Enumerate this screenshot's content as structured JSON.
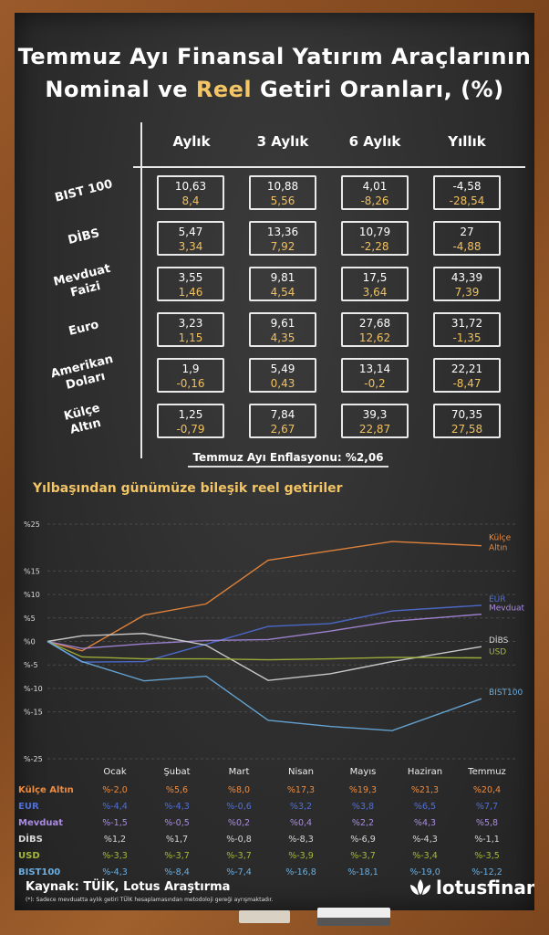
{
  "title_line1": "Temmuz Ayı Finansal Yatırım Araçlarının",
  "title_line2_a": "Nominal ve ",
  "title_line2_hl": "Reel",
  "title_line2_b": " Getiri Oranları, (%)",
  "periods": [
    "Aylık",
    "3 Aylık",
    "6 Aylık",
    "Yıllık"
  ],
  "rows": [
    {
      "label": [
        "BIST 100"
      ],
      "nominal": [
        "10,63",
        "10,88",
        "4,01",
        "-4,58"
      ],
      "real": [
        "8,4",
        "5,56",
        "-8,26",
        "-28,54"
      ]
    },
    {
      "label": [
        "DİBS"
      ],
      "nominal": [
        "5,47",
        "13,36",
        "10,79",
        "27"
      ],
      "real": [
        "3,34",
        "7,92",
        "-2,28",
        "-4,88"
      ]
    },
    {
      "label": [
        "Mevduat",
        "Faizi"
      ],
      "nominal": [
        "3,55",
        "9,81",
        "17,5",
        "43,39"
      ],
      "real": [
        "1,46",
        "4,54",
        "3,64",
        "7,39"
      ]
    },
    {
      "label": [
        "Euro"
      ],
      "nominal": [
        "3,23",
        "9,61",
        "27,68",
        "31,72"
      ],
      "real": [
        "1,15",
        "4,35",
        "12,62",
        "-1,35"
      ]
    },
    {
      "label": [
        "Amerikan",
        "Doları"
      ],
      "nominal": [
        "1,9",
        "5,49",
        "13,14",
        "22,21"
      ],
      "real": [
        "-0,16",
        "0,43",
        "-0,2",
        "-8,47"
      ]
    },
    {
      "label": [
        "Külçe",
        "Altın"
      ],
      "nominal": [
        "1,25",
        "7,84",
        "39,3",
        "70,35"
      ],
      "real": [
        "-0,79",
        "2,67",
        "22,87",
        "27,58"
      ]
    }
  ],
  "inflation_note": "Temmuz Ayı Enflasyonu: %2,06",
  "chart_subtitle": "Yılbaşından günümüze bileşik reel getiriler",
  "chart_data": {
    "type": "line",
    "title": "Yılbaşından günümüze bileşik reel getiriler",
    "categories": [
      "Ocak",
      "Şubat",
      "Mart",
      "Nisan",
      "Mayıs",
      "Haziran",
      "Temmuz"
    ],
    "ylim": [
      -25,
      25
    ],
    "yticks": [
      25,
      15,
      10,
      5,
      0,
      -5,
      -10,
      -15,
      -25
    ],
    "ytick_labels": [
      "%25",
      "%15",
      "%10",
      "%5",
      "%0",
      "%-5",
      "%-10",
      "%-15",
      "%-25"
    ],
    "grid": true,
    "series": [
      {
        "name": "Külçe Altın",
        "end_label": [
          "Külçe",
          "Altın"
        ],
        "color": "#f08a3c",
        "values": [
          -2.0,
          5.6,
          8.0,
          17.3,
          19.3,
          21.3,
          20.4
        ],
        "labels": [
          "%-2,0",
          "%5,6",
          "%8,0",
          "%17,3",
          "%19,3",
          "%21,3",
          "%20,4"
        ]
      },
      {
        "name": "EUR",
        "end_label": [
          "EUR"
        ],
        "color": "#4f6fd8",
        "values": [
          -4.4,
          -4.3,
          -0.6,
          3.2,
          3.8,
          6.5,
          7.7
        ],
        "labels": [
          "%-4,4",
          "%-4,3",
          "%-0,6",
          "%3,2",
          "%3,8",
          "%6,5",
          "%7,7"
        ]
      },
      {
        "name": "Mevduat",
        "end_label": [
          "Mevduat"
        ],
        "color": "#a98be0",
        "values": [
          -1.5,
          -0.5,
          0.2,
          0.4,
          2.2,
          4.3,
          5.8
        ],
        "labels": [
          "%-1,5",
          "%-0,5",
          "%0,2",
          "%0,4",
          "%2,2",
          "%4,3",
          "%5,8"
        ]
      },
      {
        "name": "DİBS",
        "end_label": [
          "DİBS"
        ],
        "color": "#d8d8d8",
        "values": [
          1.2,
          1.7,
          -0.8,
          -8.3,
          -6.9,
          -4.3,
          -1.1
        ],
        "labels": [
          "%1,2",
          "%1,7",
          "%-0,8",
          "%-8,3",
          "%-6,9",
          "%-4,3",
          "%-1,1"
        ]
      },
      {
        "name": "USD",
        "end_label": [
          "USD"
        ],
        "color": "#a8b83a",
        "values": [
          -3.3,
          -3.7,
          -3.7,
          -3.9,
          -3.7,
          -3.4,
          -3.5
        ],
        "labels": [
          "%-3,3",
          "%-3,7",
          "%-3,7",
          "%-3,9",
          "%-3,7",
          "%-3,4",
          "%-3,5"
        ]
      },
      {
        "name": "BIST100",
        "end_label": [
          "BIST100"
        ],
        "color": "#6aaee0",
        "values": [
          -4.3,
          -8.4,
          -7.4,
          -16.8,
          -18.1,
          -19.0,
          -12.2
        ],
        "labels": [
          "%-4,3",
          "%-8,4",
          "%-7,4",
          "%-16,8",
          "%-18,1",
          "%-19,0",
          "%-12,2"
        ]
      }
    ]
  },
  "source": "Kaynak: TÜİK, Lotus Araştırma",
  "footnote": "(*): Sadece mevduatta aylık getiri TÜİK hesaplamasından metodoloji gereği ayrışmaktadır.",
  "brand": "lotusfinans",
  "colors": {
    "highlight": "#f3c565",
    "board": "#2f2f2f",
    "frame": "#8a4e22"
  }
}
